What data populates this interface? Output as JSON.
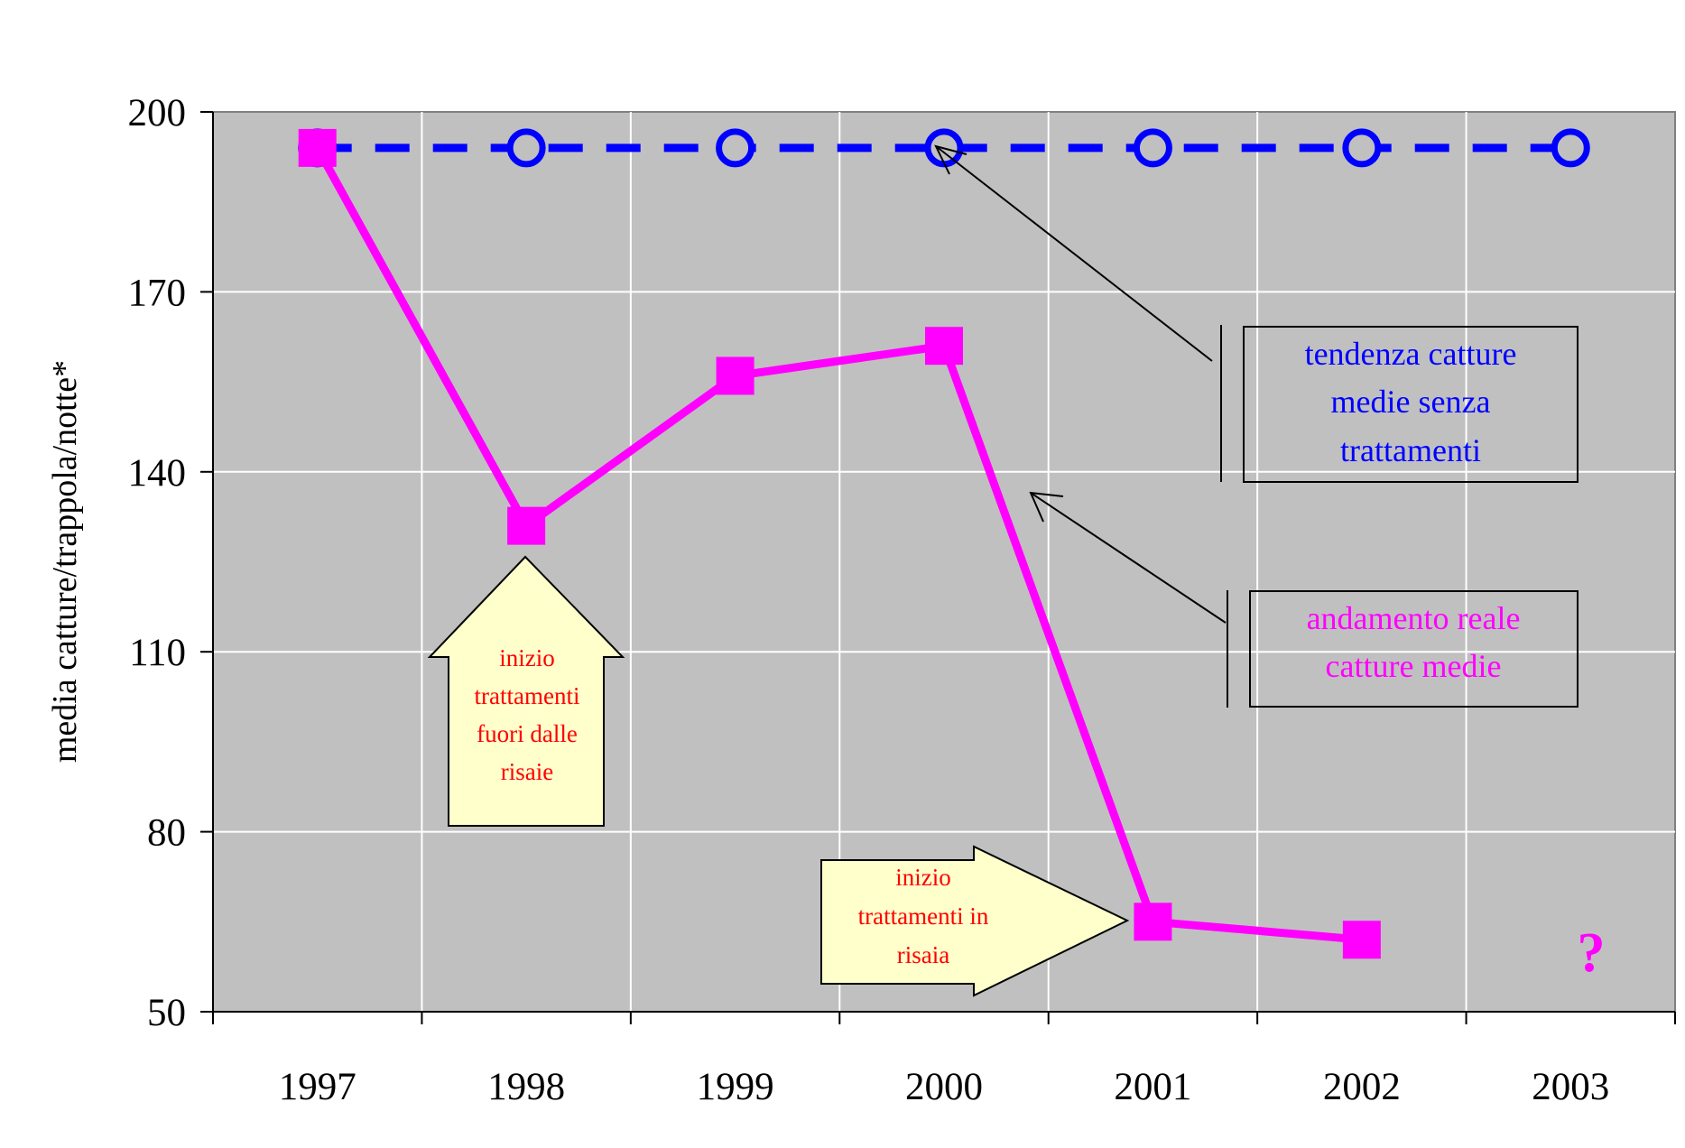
{
  "chart_data": {
    "type": "line",
    "categories": [
      "1997",
      "1998",
      "1999",
      "2000",
      "2001",
      "2002",
      "2003"
    ],
    "ylabel": "media catture/trappola/notte*",
    "ylim": [
      50,
      200
    ],
    "yticks": [
      50,
      80,
      110,
      140,
      170,
      200
    ],
    "grid": true,
    "series": [
      {
        "key": "trend",
        "color": "#0000ff",
        "style": "dashed",
        "marker": "circle",
        "values": [
          194,
          194,
          194,
          194,
          194,
          194,
          194
        ]
      },
      {
        "key": "actual",
        "color": "#ff00ff",
        "style": "solid",
        "marker": "square",
        "values": [
          194,
          131,
          156,
          161,
          65,
          62,
          null
        ]
      }
    ],
    "annotations": {
      "trend_label": [
        "tendenza catture",
        "medie senza",
        "trattamenti"
      ],
      "actual_label": [
        "andamento reale",
        "catture medie"
      ],
      "callout_1998": [
        "inizio",
        "trattamenti",
        "fuori dalle",
        "risaie"
      ],
      "callout_2001": [
        "inizio",
        "trattamenti in",
        "risaia"
      ],
      "question_mark": "?"
    },
    "colors": {
      "plot_background": "#c0c0c0",
      "callout_fill": "#ffffcc",
      "callout_text": "#ff0000"
    }
  }
}
